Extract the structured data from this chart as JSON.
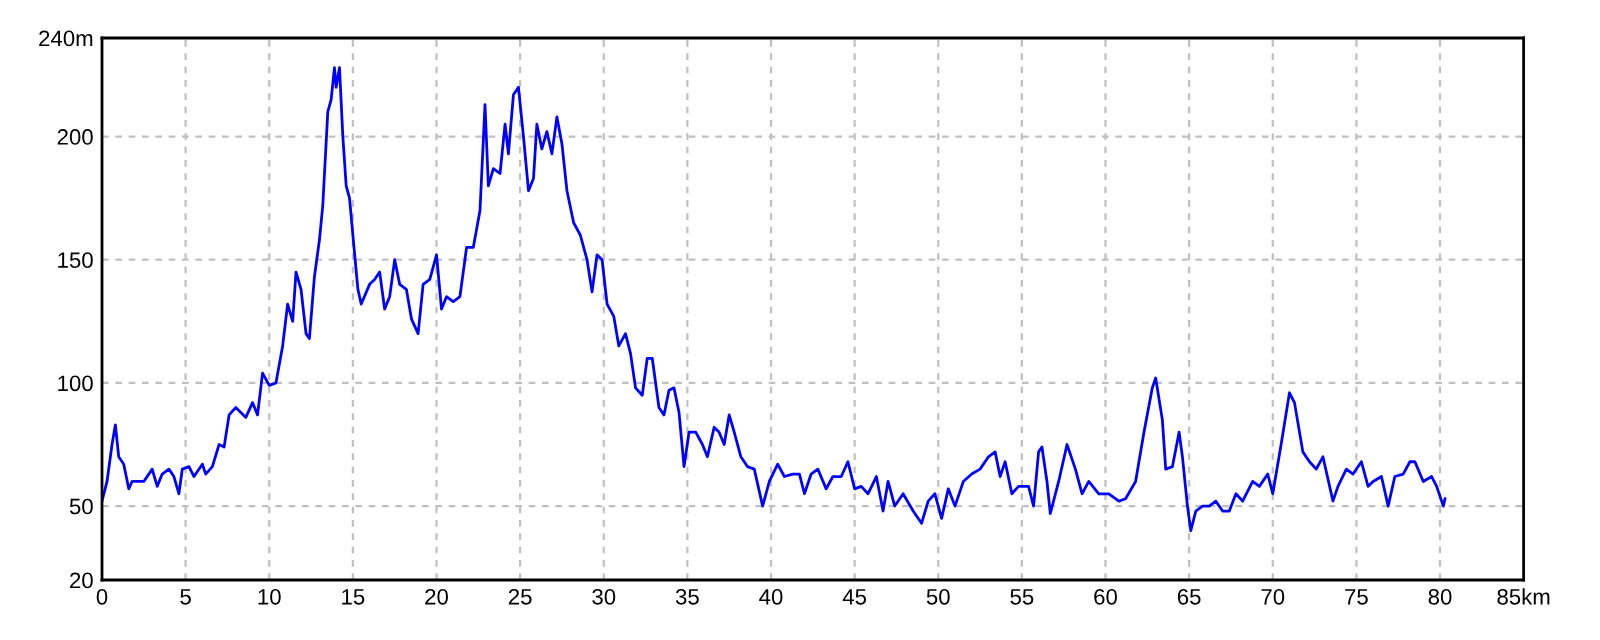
{
  "chart_data": {
    "type": "line",
    "x": [
      0,
      0.3,
      0.6,
      0.8,
      1.0,
      1.3,
      1.6,
      1.8,
      2.5,
      3.0,
      3.3,
      3.6,
      4.0,
      4.3,
      4.6,
      4.8,
      5.2,
      5.5,
      6.0,
      6.2,
      6.6,
      7.0,
      7.3,
      7.6,
      8.0,
      8.3,
      8.6,
      9.0,
      9.3,
      9.6,
      10.0,
      10.4,
      10.8,
      11.1,
      11.4,
      11.6,
      11.9,
      12.2,
      12.4,
      12.7,
      13.0,
      13.2,
      13.5,
      13.7,
      13.9,
      14.0,
      14.2,
      14.4,
      14.6,
      14.8,
      15.0,
      15.3,
      15.5,
      16.0,
      16.3,
      16.6,
      16.9,
      17.2,
      17.5,
      17.8,
      18.2,
      18.5,
      18.9,
      19.2,
      19.6,
      20.0,
      20.3,
      20.6,
      21.0,
      21.4,
      21.8,
      22.2,
      22.6,
      22.9,
      23.1,
      23.4,
      23.8,
      24.1,
      24.3,
      24.6,
      24.9,
      25.2,
      25.5,
      25.8,
      26.0,
      26.3,
      26.6,
      26.9,
      27.2,
      27.5,
      27.8,
      28.2,
      28.6,
      29.0,
      29.3,
      29.6,
      29.9,
      30.2,
      30.6,
      30.9,
      31.3,
      31.6,
      31.9,
      32.3,
      32.6,
      32.9,
      33.3,
      33.6,
      33.9,
      34.2,
      34.5,
      34.8,
      35.1,
      35.5,
      35.9,
      36.2,
      36.6,
      36.9,
      37.2,
      37.5,
      37.8,
      38.2,
      38.6,
      39.0,
      39.5,
      39.9,
      40.4,
      40.8,
      41.3,
      41.7,
      42.0,
      42.4,
      42.8,
      43.3,
      43.7,
      44.2,
      44.6,
      45.0,
      45.4,
      45.8,
      46.3,
      46.7,
      47.0,
      47.4,
      47.9,
      48.5,
      49.0,
      49.4,
      49.8,
      50.2,
      50.6,
      51.0,
      51.5,
      52.0,
      52.5,
      53.0,
      53.4,
      53.7,
      54.0,
      54.4,
      54.8,
      55.4,
      55.7,
      56.0,
      56.2,
      56.5,
      56.7,
      57.2,
      57.7,
      58.2,
      58.6,
      59.0,
      59.6,
      60.2,
      60.8,
      61.2,
      61.8,
      62.3,
      62.8,
      63.0,
      63.4,
      63.6,
      64.0,
      64.4,
      64.6,
      64.9,
      65.1,
      65.4,
      65.8,
      66.2,
      66.6,
      67.0,
      67.4,
      67.8,
      68.2,
      68.8,
      69.2,
      69.7,
      70.0,
      70.5,
      71.0,
      71.3,
      71.8,
      72.2,
      72.6,
      73.0,
      73.6,
      73.9,
      74.4,
      74.8,
      75.3,
      75.7,
      76.0,
      76.5,
      76.9,
      77.3,
      77.8,
      78.2,
      78.5,
      79.0,
      79.5,
      79.8,
      80.2,
      80.3
    ],
    "series": [
      {
        "color": "#0000ff",
        "values": [
          52,
          60,
          75,
          83,
          70,
          67,
          57,
          60,
          60,
          65,
          58,
          63,
          65,
          62,
          55,
          65,
          66,
          62,
          67,
          63,
          66,
          75,
          74,
          87,
          90,
          88,
          86,
          92,
          87,
          104,
          99,
          100,
          115,
          132,
          125,
          145,
          138,
          120,
          118,
          143,
          158,
          172,
          210,
          215,
          228,
          220,
          228,
          200,
          180,
          175,
          160,
          138,
          132,
          140,
          142,
          145,
          130,
          135,
          150,
          140,
          138,
          126,
          120,
          140,
          142,
          152,
          130,
          135,
          133,
          135,
          155,
          155,
          170,
          213,
          180,
          187,
          185,
          205,
          193,
          217,
          220,
          200,
          178,
          183,
          205,
          195,
          202,
          193,
          208,
          197,
          178,
          165,
          160,
          150,
          137,
          152,
          150,
          132,
          127,
          115,
          120,
          112,
          98,
          95,
          110,
          110,
          90,
          87,
          97,
          98,
          88,
          66,
          80,
          80,
          75,
          70,
          82,
          80,
          75,
          87,
          80,
          70,
          66,
          65,
          50,
          60,
          67,
          62,
          63,
          63,
          55,
          63,
          65,
          57,
          62,
          62,
          68,
          57,
          58,
          55,
          62,
          48,
          60,
          50,
          55,
          48,
          43,
          52,
          55,
          45,
          57,
          50,
          60,
          63,
          65,
          70,
          72,
          62,
          68,
          55,
          58,
          58,
          50,
          72,
          74,
          60,
          47,
          60,
          75,
          65,
          55,
          60,
          55,
          55,
          52,
          53,
          60,
          80,
          98,
          102,
          85,
          65,
          66,
          80,
          70,
          50,
          40,
          48,
          50,
          50,
          52,
          48,
          48,
          55,
          52,
          60,
          58,
          63,
          55,
          75,
          96,
          92,
          72,
          68,
          65,
          70,
          52,
          58,
          65,
          63,
          68,
          58,
          60,
          62,
          50,
          62,
          63,
          68,
          68,
          60,
          62,
          58,
          50,
          53
        ]
      }
    ],
    "xlim": [
      0,
      85
    ],
    "ylim": [
      20,
      240
    ],
    "xticks": [
      0,
      5,
      10,
      15,
      20,
      25,
      30,
      35,
      40,
      45,
      50,
      55,
      60,
      65,
      70,
      75,
      80,
      {
        "value": 85,
        "label": "85km"
      }
    ],
    "yticks": [
      20,
      50,
      100,
      150,
      200,
      {
        "value": 240,
        "label": "240m"
      }
    ],
    "grid": true,
    "line_style": "solid",
    "marker": "none"
  }
}
